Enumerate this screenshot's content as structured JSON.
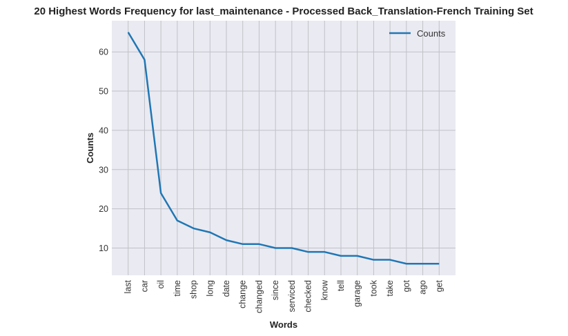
{
  "chart_data": {
    "type": "line",
    "title": "20 Highest Words Frequency for last_maintenance - Processed Back_Translation-French Training Set",
    "xlabel": "Words",
    "ylabel": "Counts",
    "categories": [
      "last",
      "car",
      "oil",
      "time",
      "shop",
      "long",
      "date",
      "change",
      "changed",
      "since",
      "serviced",
      "checked",
      "know",
      "tell",
      "garage",
      "took",
      "take",
      "got",
      "ago",
      "get"
    ],
    "series": [
      {
        "name": "Counts",
        "values": [
          65,
          58,
          24,
          17,
          15,
          14,
          12,
          11,
          11,
          10,
          10,
          9,
          9,
          8,
          8,
          7,
          7,
          6,
          6,
          6
        ]
      }
    ],
    "yticks": [
      10,
      20,
      30,
      40,
      50,
      60
    ],
    "ylim": [
      3.05,
      67.95
    ],
    "grid": true,
    "legend_position": "upper right",
    "colors": {
      "line": "#1f77b4",
      "plot_bg": "#eaeaf2",
      "grid": "#c0c0c8"
    }
  }
}
